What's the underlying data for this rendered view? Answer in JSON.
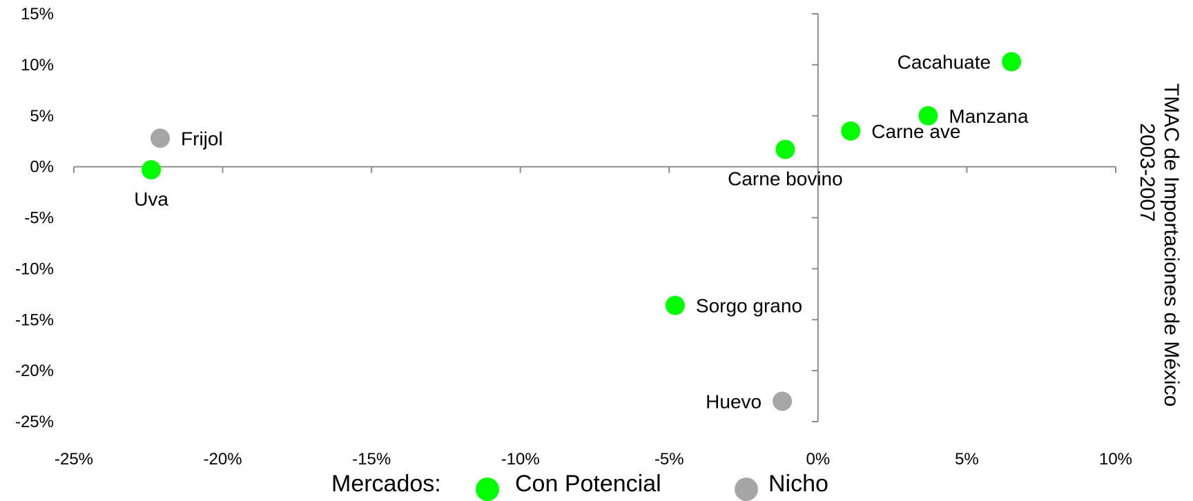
{
  "chart_data": {
    "type": "scatter",
    "title": "",
    "xlabel": "",
    "ylabel_lines": [
      "TMAC de Importaciones  de México",
      "2003-2007"
    ],
    "xlim": [
      -25,
      10
    ],
    "ylim": [
      -25,
      15
    ],
    "x_ticks": [
      -25,
      -20,
      -15,
      -10,
      -5,
      0,
      5,
      10
    ],
    "y_ticks": [
      15,
      10,
      5,
      0,
      -5,
      -10,
      -15,
      -20,
      -25
    ],
    "x_tick_labels": [
      "-25%",
      "-20%",
      "-15%",
      "-10%",
      "-5%",
      "0%",
      "5%",
      "10%"
    ],
    "y_tick_labels": [
      "15%",
      "10%",
      "5%",
      "0%",
      "-5%",
      "-10%",
      "-15%",
      "-20%",
      "-25%"
    ],
    "legend": {
      "title": "Mercados:",
      "placement": "bottom",
      "entries": [
        {
          "name": "Con Potencial",
          "color": "#00ff00"
        },
        {
          "name": "Nicho",
          "color": "#a6a6a6"
        }
      ]
    },
    "points": [
      {
        "label": "Cacahuate",
        "x": 6.5,
        "y": 10.3,
        "group": "Con Potencial",
        "label_pos": "left"
      },
      {
        "label": "Manzana",
        "x": 3.7,
        "y": 5.0,
        "group": "Con Potencial",
        "label_pos": "right"
      },
      {
        "label": "Carne ave",
        "x": 1.1,
        "y": 3.5,
        "group": "Con Potencial",
        "label_pos": "right"
      },
      {
        "label": "Carne bovino",
        "x": -1.1,
        "y": 1.7,
        "group": "Con Potencial",
        "label_pos": "below"
      },
      {
        "label": "Frijol",
        "x": -22.1,
        "y": 2.8,
        "group": "Nicho",
        "label_pos": "right"
      },
      {
        "label": "Uva",
        "x": -22.4,
        "y": -0.3,
        "group": "Con Potencial",
        "label_pos": "below"
      },
      {
        "label": "Sorgo grano",
        "x": -4.8,
        "y": -13.6,
        "group": "Con Potencial",
        "label_pos": "right"
      },
      {
        "label": "Huevo",
        "x": -1.2,
        "y": -23.0,
        "group": "Nicho",
        "label_pos": "left"
      }
    ]
  }
}
